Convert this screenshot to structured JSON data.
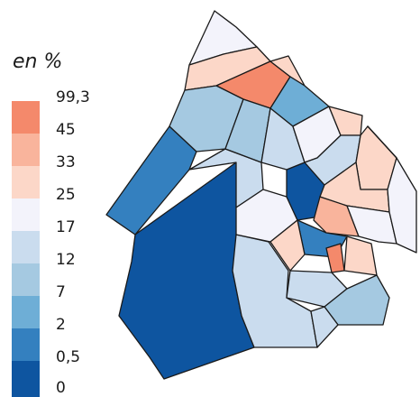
{
  "legend": {
    "title": "en %",
    "ticks": [
      "99,3",
      "45",
      "33",
      "25",
      "17",
      "12",
      "7",
      "2",
      "0,5",
      "0"
    ],
    "classes": [
      {
        "color": "#f4896b"
      },
      {
        "color": "#f9b49c"
      },
      {
        "color": "#fcd7c8"
      },
      {
        "color": "#f3f3fb"
      },
      {
        "color": "#cadcee"
      },
      {
        "color": "#a5c9e1"
      },
      {
        "color": "#6eaed6"
      },
      {
        "color": "#3480bf"
      },
      {
        "color": "#0e55a0"
      }
    ]
  },
  "map": {
    "border_color": "#1a1a1a"
  }
}
